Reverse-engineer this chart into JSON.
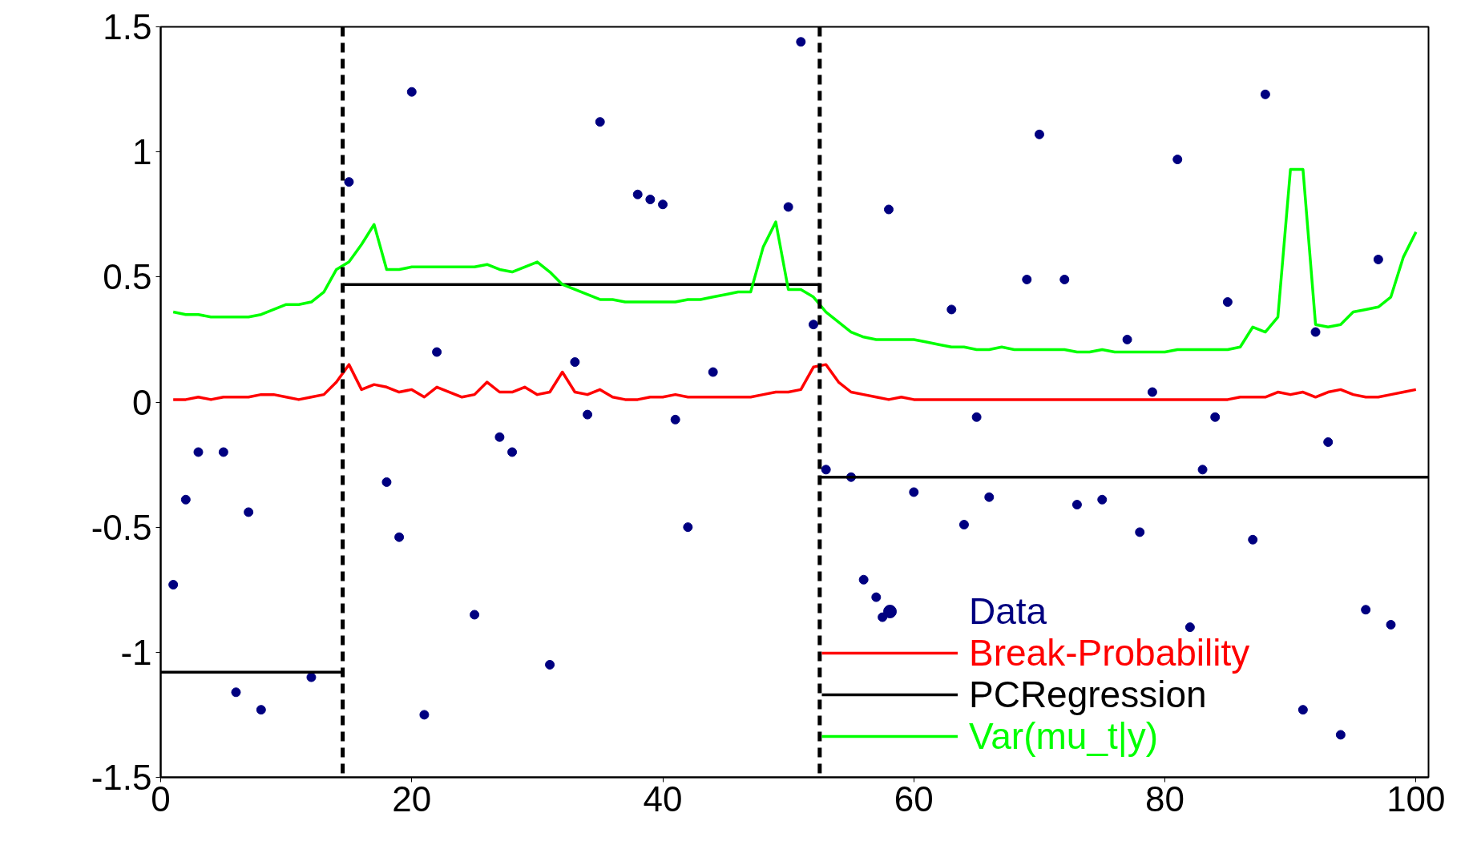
{
  "chart_data": {
    "type": "line",
    "xlim": [
      0,
      101
    ],
    "ylim": [
      -1.5,
      1.5
    ],
    "xticks": [
      0,
      20,
      40,
      60,
      80,
      100
    ],
    "yticks": [
      -1.5,
      -1,
      -0.5,
      0,
      0.5,
      1,
      1.5
    ],
    "grid": false,
    "legend": "bottom right",
    "series": [
      {
        "name": "Data",
        "type": "scatter",
        "marker": "circle",
        "color": "#000080",
        "x": [
          1,
          2,
          3,
          5,
          6,
          7,
          8,
          12,
          15,
          18,
          19,
          20,
          21,
          22,
          25,
          27,
          28,
          31,
          33,
          34,
          35,
          38,
          39,
          40,
          41,
          42,
          44,
          50,
          51,
          52,
          53,
          55,
          56,
          57,
          57.5,
          58,
          60,
          63,
          64,
          65,
          66,
          69,
          70,
          72,
          73,
          75,
          77,
          78,
          79,
          81,
          82,
          83,
          84,
          85,
          87,
          88,
          91,
          92,
          93,
          94,
          96,
          97,
          98
        ],
        "values": [
          -0.73,
          -0.39,
          -0.2,
          -0.2,
          -1.16,
          -0.44,
          -1.23,
          -1.1,
          0.88,
          -0.32,
          -0.54,
          1.24,
          -1.25,
          0.2,
          -0.85,
          -0.14,
          -0.2,
          -1.05,
          0.16,
          -0.05,
          1.12,
          0.83,
          0.81,
          0.79,
          -0.07,
          -0.5,
          0.12,
          0.78,
          1.44,
          0.31,
          -0.27,
          -0.3,
          -0.71,
          -0.78,
          -0.86,
          0.77,
          -0.36,
          0.37,
          -0.49,
          -0.06,
          -0.38,
          0.49,
          1.07,
          0.49,
          -0.41,
          -0.39,
          0.25,
          -0.52,
          0.04,
          0.97,
          -0.9,
          -0.27,
          -0.06,
          0.4,
          -0.55,
          1.23,
          -1.23,
          0.28,
          -0.16,
          -1.33,
          -0.83,
          0.57,
          -0.89
        ]
      },
      {
        "name": "Break-Probability",
        "color": "#ff0000",
        "x": [
          1,
          2,
          3,
          4,
          5,
          6,
          7,
          8,
          9,
          10,
          11,
          12,
          13,
          14,
          15,
          16,
          17,
          18,
          19,
          20,
          21,
          22,
          23,
          24,
          25,
          26,
          27,
          28,
          29,
          30,
          31,
          32,
          33,
          34,
          35,
          36,
          37,
          38,
          39,
          40,
          41,
          42,
          43,
          44,
          45,
          46,
          47,
          48,
          49,
          50,
          51,
          52,
          53,
          54,
          55,
          56,
          57,
          58,
          59,
          60,
          61,
          62,
          63,
          64,
          65,
          66,
          67,
          68,
          69,
          70,
          71,
          72,
          73,
          74,
          75,
          76,
          77,
          78,
          79,
          80,
          81,
          82,
          83,
          84,
          85,
          86,
          87,
          88,
          89,
          90,
          91,
          92,
          93,
          94,
          95,
          96,
          97,
          98,
          99,
          100
        ],
        "values": [
          0.01,
          0.01,
          0.02,
          0.01,
          0.02,
          0.02,
          0.02,
          0.03,
          0.03,
          0.02,
          0.01,
          0.02,
          0.03,
          0.08,
          0.15,
          0.05,
          0.07,
          0.06,
          0.04,
          0.05,
          0.02,
          0.06,
          0.04,
          0.02,
          0.03,
          0.08,
          0.04,
          0.04,
          0.06,
          0.03,
          0.04,
          0.12,
          0.04,
          0.03,
          0.05,
          0.02,
          0.01,
          0.01,
          0.02,
          0.02,
          0.03,
          0.02,
          0.02,
          0.02,
          0.02,
          0.02,
          0.02,
          0.03,
          0.04,
          0.04,
          0.05,
          0.14,
          0.15,
          0.08,
          0.04,
          0.03,
          0.02,
          0.01,
          0.02,
          0.01,
          0.01,
          0.01,
          0.01,
          0.01,
          0.01,
          0.01,
          0.01,
          0.01,
          0.01,
          0.01,
          0.01,
          0.01,
          0.01,
          0.01,
          0.01,
          0.01,
          0.01,
          0.01,
          0.01,
          0.01,
          0.01,
          0.01,
          0.01,
          0.01,
          0.01,
          0.02,
          0.02,
          0.02,
          0.04,
          0.03,
          0.04,
          0.02,
          0.04,
          0.05,
          0.03,
          0.02,
          0.02,
          0.03,
          0.04,
          0.05
        ]
      },
      {
        "name": "PCRegression",
        "color": "#000000",
        "x": [
          0,
          14.5,
          null,
          14.5,
          52.5,
          null,
          52.5,
          101
        ],
        "values": [
          -1.08,
          -1.08,
          null,
          0.47,
          0.47,
          null,
          -0.3,
          -0.3
        ]
      },
      {
        "name": "Var(mu_t|y)",
        "color": "#00ff00",
        "x": [
          1,
          2,
          3,
          4,
          5,
          6,
          7,
          8,
          9,
          10,
          11,
          12,
          13,
          14,
          15,
          16,
          17,
          18,
          19,
          20,
          21,
          22,
          23,
          24,
          25,
          26,
          27,
          28,
          29,
          30,
          31,
          32,
          33,
          34,
          35,
          36,
          37,
          38,
          39,
          40,
          41,
          42,
          43,
          44,
          45,
          46,
          47,
          48,
          49,
          50,
          51,
          52,
          53,
          54,
          55,
          56,
          57,
          58,
          59,
          60,
          61,
          62,
          63,
          64,
          65,
          66,
          67,
          68,
          69,
          70,
          71,
          72,
          73,
          74,
          75,
          76,
          77,
          78,
          79,
          80,
          81,
          82,
          83,
          84,
          85,
          86,
          87,
          88,
          89,
          90,
          91,
          92,
          93,
          94,
          95,
          96,
          97,
          98,
          99,
          100
        ],
        "values": [
          0.36,
          0.35,
          0.35,
          0.34,
          0.34,
          0.34,
          0.34,
          0.35,
          0.37,
          0.39,
          0.39,
          0.4,
          0.44,
          0.53,
          0.56,
          0.63,
          0.71,
          0.53,
          0.53,
          0.54,
          0.54,
          0.54,
          0.54,
          0.54,
          0.54,
          0.55,
          0.53,
          0.52,
          0.54,
          0.56,
          0.52,
          0.47,
          0.45,
          0.43,
          0.41,
          0.41,
          0.4,
          0.4,
          0.4,
          0.4,
          0.4,
          0.41,
          0.41,
          0.42,
          0.43,
          0.44,
          0.44,
          0.62,
          0.72,
          0.45,
          0.45,
          0.42,
          0.36,
          0.32,
          0.28,
          0.26,
          0.25,
          0.25,
          0.25,
          0.25,
          0.24,
          0.23,
          0.22,
          0.22,
          0.21,
          0.21,
          0.22,
          0.21,
          0.21,
          0.21,
          0.21,
          0.21,
          0.2,
          0.2,
          0.21,
          0.2,
          0.2,
          0.2,
          0.2,
          0.2,
          0.21,
          0.21,
          0.21,
          0.21,
          0.21,
          0.22,
          0.3,
          0.28,
          0.34,
          0.93,
          0.93,
          0.31,
          0.3,
          0.31,
          0.36,
          0.37,
          0.38,
          0.42,
          0.58,
          0.68
        ]
      }
    ],
    "ref_lines": [
      {
        "axis": "x",
        "value": 14.5,
        "color": "#000000",
        "line_style": "dashed"
      },
      {
        "axis": "x",
        "value": 52.5,
        "color": "#000000",
        "line_style": "dashed"
      }
    ]
  }
}
